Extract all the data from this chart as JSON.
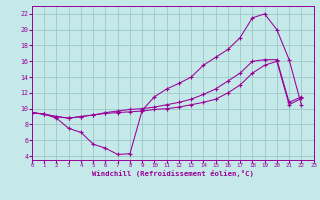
{
  "xlabel": "Windchill (Refroidissement éolien,°C)",
  "bg_color": "#c5e8e8",
  "grid_color": "#9cc8c8",
  "line_color": "#990099",
  "xlim": [
    0,
    23
  ],
  "ylim": [
    3.5,
    23.0
  ],
  "xticks": [
    0,
    1,
    2,
    3,
    4,
    5,
    6,
    7,
    8,
    9,
    10,
    11,
    12,
    13,
    14,
    15,
    16,
    17,
    18,
    19,
    20,
    21,
    22,
    23
  ],
  "yticks": [
    4,
    6,
    8,
    10,
    12,
    14,
    16,
    18,
    20,
    22
  ],
  "line1_x": [
    0,
    1,
    2,
    3,
    4,
    5,
    6,
    7,
    8,
    9,
    10,
    11,
    12,
    13,
    14,
    15,
    16,
    17,
    18,
    19,
    20,
    21,
    22
  ],
  "line1_y": [
    9.5,
    9.3,
    8.8,
    7.5,
    7.0,
    5.5,
    5.0,
    4.2,
    4.3,
    9.8,
    11.5,
    12.5,
    13.2,
    14.0,
    15.5,
    16.5,
    17.5,
    19.0,
    21.5,
    22.0,
    20.0,
    16.2,
    10.5
  ],
  "line2_x": [
    0,
    1,
    2,
    3,
    4,
    5,
    6,
    7,
    8,
    9,
    10,
    11,
    12,
    13,
    14,
    15,
    16,
    17,
    18,
    19,
    20,
    21,
    22
  ],
  "line2_y": [
    9.5,
    9.3,
    9.0,
    8.8,
    9.0,
    9.2,
    9.5,
    9.7,
    9.9,
    10.0,
    10.2,
    10.5,
    10.8,
    11.2,
    11.8,
    12.5,
    13.5,
    14.5,
    16.0,
    16.2,
    16.2,
    10.8,
    11.5
  ],
  "line3_x": [
    0,
    1,
    2,
    3,
    4,
    5,
    6,
    7,
    8,
    9,
    10,
    11,
    12,
    13,
    14,
    15,
    16,
    17,
    18,
    19,
    20,
    21,
    22
  ],
  "line3_y": [
    9.5,
    9.3,
    9.0,
    8.8,
    9.0,
    9.2,
    9.4,
    9.5,
    9.6,
    9.7,
    9.9,
    10.0,
    10.2,
    10.5,
    10.8,
    11.2,
    12.0,
    13.0,
    14.5,
    15.5,
    16.0,
    10.5,
    11.3
  ]
}
